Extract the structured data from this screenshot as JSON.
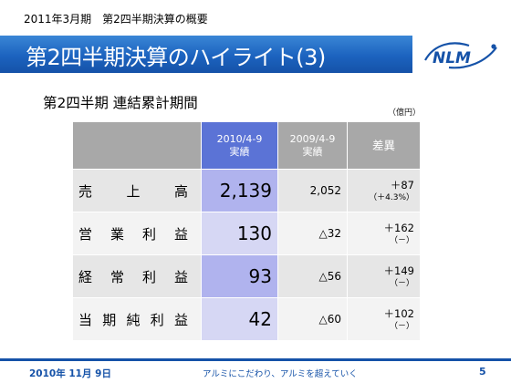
{
  "header": {
    "caption": "2011年3月期　第2四半期決算の概要",
    "title": "第2四半期決算のハイライト(3)",
    "logo_text": "NLM"
  },
  "section": {
    "subtitle": "第2四半期 連結累計期間",
    "unit": "（億円）"
  },
  "table": {
    "columns": {
      "current": {
        "line1": "2010/4-9",
        "line2": "実績"
      },
      "previous": {
        "line1": "2009/4-9",
        "line2": "実績"
      },
      "diff": "差異"
    },
    "rows": [
      {
        "label": [
          "売",
          "上",
          "高"
        ],
        "current": "2,139",
        "previous": "2,052",
        "diff": "＋87",
        "diff_pct": "（＋4.3%）"
      },
      {
        "label": [
          "営",
          "業",
          "利",
          "益"
        ],
        "current": "130",
        "previous": "△32",
        "diff": "＋162",
        "diff_pct": "（－）"
      },
      {
        "label": [
          "経",
          "常",
          "利",
          "益"
        ],
        "current": "93",
        "previous": "△56",
        "diff": "＋149",
        "diff_pct": "（－）"
      },
      {
        "label": [
          "当",
          "期",
          "純",
          "利",
          "益"
        ],
        "current": "42",
        "previous": "△60",
        "diff": "＋102",
        "diff_pct": "（－）"
      }
    ]
  },
  "footer": {
    "date": "2010年 11月 9日",
    "slogan": "アルミにこだわり、アルミを超えていく",
    "page": "5"
  },
  "colors": {
    "brand_blue": "#1552a8",
    "current_header": "#5b73d6",
    "header_gray": "#a8a8a8"
  }
}
